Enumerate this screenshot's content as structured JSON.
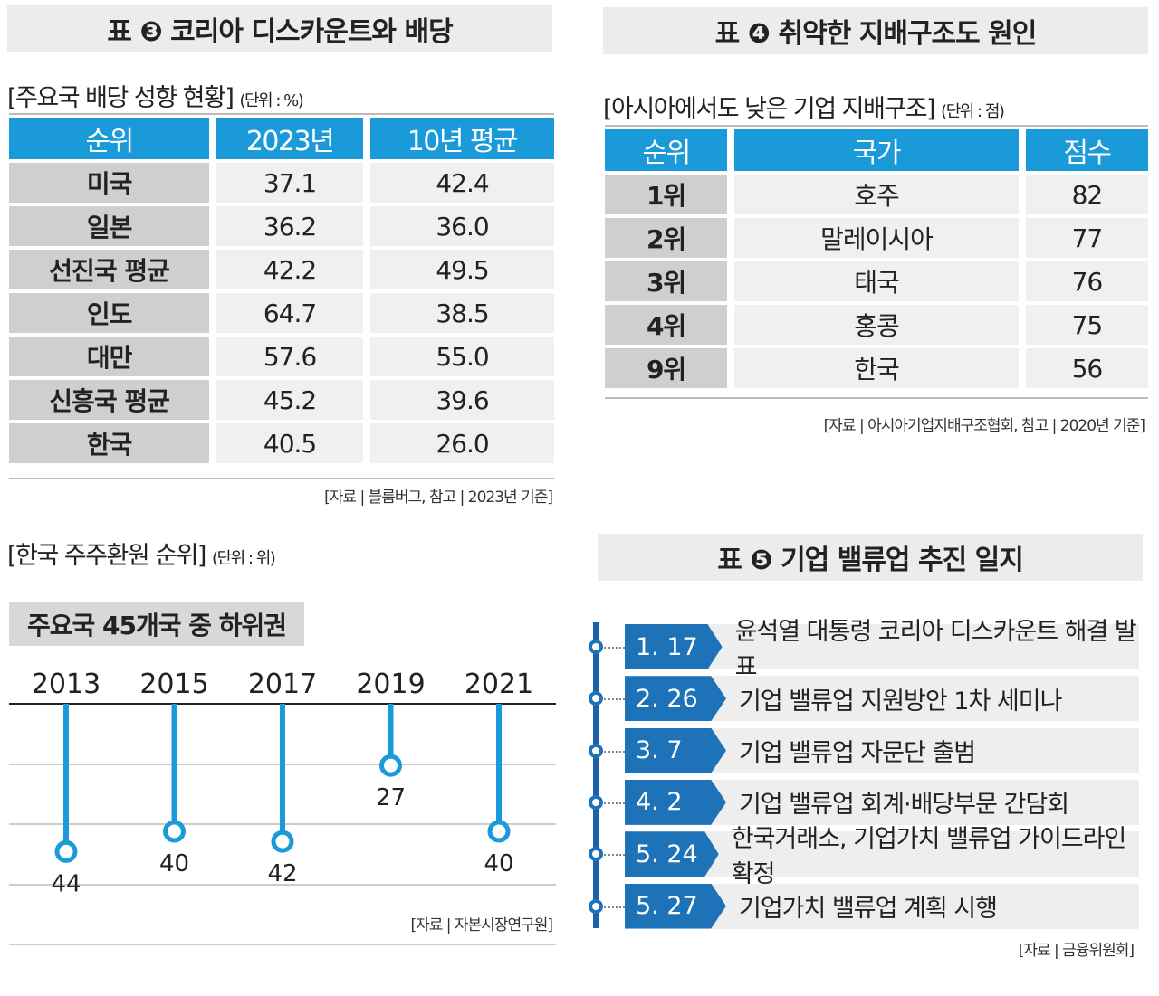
{
  "table3": {
    "title": "표 ❸ 코리아 디스카운트와 배당",
    "subtitle": "[주요국 배당 성향 현황]",
    "unit": "(단위 : %)",
    "headers": [
      "순위",
      "2023년",
      "10년 평균"
    ],
    "rows": [
      [
        "미국",
        "37.1",
        "42.4"
      ],
      [
        "일본",
        "36.2",
        "36.0"
      ],
      [
        "선진국 평균",
        "42.2",
        "49.5"
      ],
      [
        "인도",
        "64.7",
        "38.5"
      ],
      [
        "대만",
        "57.6",
        "55.0"
      ],
      [
        "신흥국 평균",
        "45.2",
        "39.6"
      ],
      [
        "한국",
        "40.5",
        "26.0"
      ]
    ],
    "source": "[자료 | 블룸버그, 참고 | 2023년 기준]"
  },
  "table4": {
    "title": "표 ❹ 취약한 지배구조도 원인",
    "subtitle": "[아시아에서도 낮은 기업 지배구조]",
    "unit": "(단위 : 점)",
    "headers": [
      "순위",
      "국가",
      "점수"
    ],
    "rows": [
      [
        "1위",
        "호주",
        "82"
      ],
      [
        "2위",
        "말레이시아",
        "77"
      ],
      [
        "3위",
        "태국",
        "76"
      ],
      [
        "4위",
        "홍콩",
        "75"
      ],
      [
        "9위",
        "한국",
        "56"
      ]
    ],
    "source": "[자료 | 아시아기업지배구조협회, 참고 | 2020년 기준]"
  },
  "chart_data": {
    "type": "lollipop",
    "title": "[한국 주주환원 순위]",
    "unit": "(단위 : 위)",
    "banner": "주요국 45개국 중 하위권",
    "categories": [
      "2013",
      "2015",
      "2017",
      "2019",
      "2021"
    ],
    "values": [
      44,
      40,
      42,
      27,
      40
    ],
    "color": "#1b9ad9",
    "source": "[자료 | 자본시장연구원]"
  },
  "timeline": {
    "title": "표 ❺ 기업 밸류업 추진 일지",
    "items": [
      {
        "date": "1. 17",
        "text": "윤석열 대통령 코리아 디스카운트 해결 발표"
      },
      {
        "date": "2. 26",
        "text": "기업 밸류업 지원방안 1차 세미나"
      },
      {
        "date": "3. 7",
        "text": "기업 밸류업 자문단 출범"
      },
      {
        "date": "4. 2",
        "text": "기업 밸류업 회계·배당부문 간담회"
      },
      {
        "date": "5. 24",
        "text": "한국거래소, 기업가치 밸류업 가이드라인 확정"
      },
      {
        "date": "5. 27",
        "text": "기업가치 밸류업 계획 시행"
      }
    ],
    "source": "[자료 | 금융위원회]"
  }
}
